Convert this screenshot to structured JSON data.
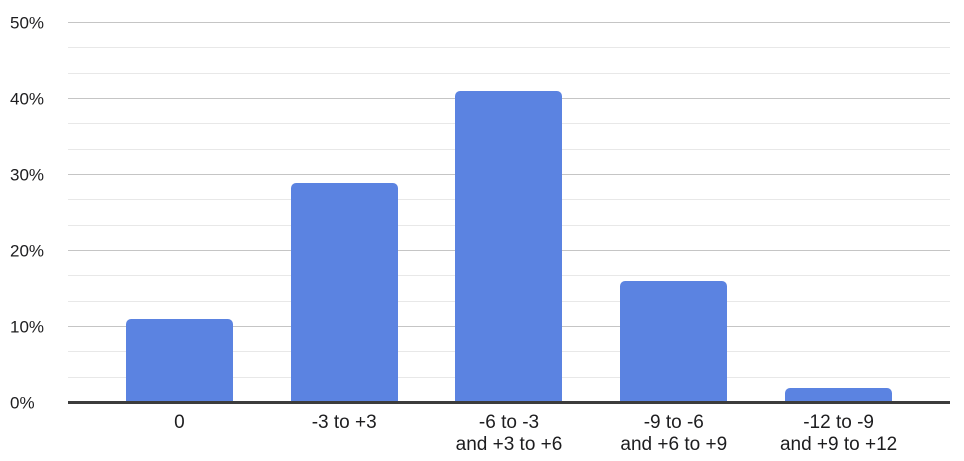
{
  "chart_data": {
    "type": "bar",
    "title": "",
    "xlabel": "",
    "ylabel": "",
    "categories": [
      "0",
      "-3 to +3",
      "-6 to -3\nand +3 to +6",
      "-9 to -6\nand +6 to +9",
      "-12 to -9\nand +9 to +12"
    ],
    "values": [
      11,
      29,
      41,
      16,
      2
    ],
    "value_unit": "%",
    "ylim": [
      0,
      50
    ],
    "y_ticks": [
      "0%",
      "10%",
      "20%",
      "30%",
      "40%",
      "50%"
    ],
    "y_tick_values": [
      0,
      10,
      20,
      30,
      40,
      50
    ],
    "y_minor_divisions_per_major": 3,
    "grid": "horizontal only, major and minor lines",
    "legend": "none",
    "colors": {
      "bar": "#5b83e1",
      "major_gridline": "#c5c5c5",
      "minor_gridline": "#e8e8e8",
      "axis_line": "#3c3c3c",
      "label_text": "#1d1d1f",
      "background": "#ffffff"
    }
  }
}
